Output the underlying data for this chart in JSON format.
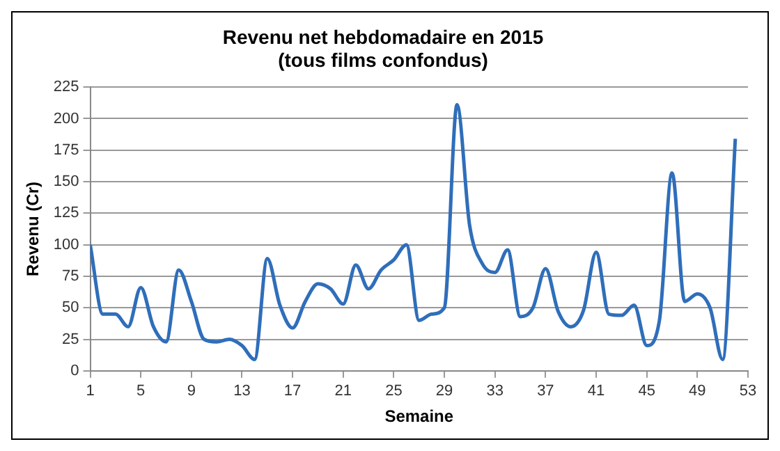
{
  "chart_data": {
    "type": "line",
    "title": [
      "Revenu net hebdomadaire en 2015",
      "(tous films confondus)"
    ],
    "xlabel": "Semaine",
    "ylabel": "Revenu (Cr)",
    "x": [
      1,
      2,
      3,
      4,
      5,
      6,
      7,
      8,
      9,
      10,
      11,
      12,
      13,
      14,
      15,
      16,
      17,
      18,
      19,
      20,
      21,
      22,
      23,
      24,
      25,
      26,
      27,
      28,
      29,
      30,
      31,
      32,
      33,
      34,
      35,
      36,
      37,
      38,
      39,
      40,
      41,
      42,
      43,
      44,
      45,
      46,
      47,
      48,
      49,
      50,
      51,
      52
    ],
    "series": [
      {
        "color": "#2f6eba",
        "values": [
          100,
          45,
          45,
          35,
          66,
          35,
          23,
          80,
          55,
          25,
          23,
          25,
          20,
          9,
          89,
          52,
          34,
          55,
          69,
          65,
          53,
          84,
          65,
          80,
          88,
          100,
          40,
          45,
          50,
          211,
          115,
          85,
          78,
          96,
          43,
          50,
          81,
          47,
          35,
          48,
          94,
          45,
          44,
          52,
          20,
          40,
          157,
          55,
          61,
          50,
          9,
          184
        ]
      }
    ],
    "xlim": [
      1,
      53
    ],
    "xticks": [
      1,
      5,
      9,
      13,
      17,
      21,
      25,
      29,
      33,
      37,
      41,
      45,
      49,
      53
    ],
    "ylim": [
      0,
      225
    ],
    "yticks": [
      0,
      25,
      50,
      75,
      100,
      125,
      150,
      175,
      200,
      225
    ],
    "grid": "y",
    "legend": false,
    "marker": "none",
    "line_style": "solid"
  }
}
